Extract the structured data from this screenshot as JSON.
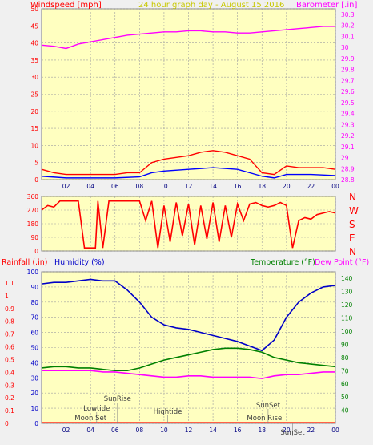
{
  "window": {
    "title": "24 hour graph day - August 15 2016"
  },
  "colors": {
    "background": "#f0f0f0",
    "plot_bg": "#ffffc0",
    "grid": "#a0a0a0",
    "wind": "#ff0000",
    "wind_avg": "#0000ff",
    "wind_green": "#008000",
    "barometer": "#ff00ff",
    "humidity": "#0000c8",
    "temperature": "#008000",
    "dewpoint": "#ff00ff",
    "rainfall": "#ff0000"
  },
  "chart_data": [
    {
      "type": "line",
      "title": "24 hour graph day - August 15 2016",
      "ylabel": "Windspeed [mph]",
      "y2label": "Barometer [.in]",
      "ylim": [
        0,
        50
      ],
      "y2lim": [
        28.8,
        30.35
      ],
      "x_ticks": [
        "02",
        "04",
        "06",
        "08",
        "10",
        "12",
        "14",
        "16",
        "18",
        "20",
        "22",
        "00"
      ],
      "y_ticks": [
        "0",
        "5",
        "10",
        "15",
        "20",
        "25",
        "30",
        "35",
        "40",
        "45",
        "50"
      ],
      "y2_ticks": [
        "28.8",
        "28.9",
        "29",
        "29.1",
        "29.2",
        "29.3",
        "29.4",
        "29.5",
        "29.6",
        "29.7",
        "29.8",
        "29.9",
        "30",
        "30.1",
        "30.2",
        "30.3"
      ],
      "series": [
        {
          "name": "Barometer",
          "axis": "right",
          "x": [
            0,
            1,
            2,
            3,
            4,
            5,
            6,
            7,
            8,
            9,
            10,
            11,
            12,
            13,
            14,
            15,
            16,
            17,
            18,
            19,
            20,
            21,
            22,
            23,
            24
          ],
          "values": [
            30.02,
            30.01,
            29.99,
            30.03,
            30.05,
            30.07,
            30.09,
            30.11,
            30.12,
            30.13,
            30.14,
            30.14,
            30.15,
            30.15,
            30.14,
            30.14,
            30.13,
            30.13,
            30.14,
            30.15,
            30.16,
            30.17,
            30.18,
            30.19,
            30.19
          ]
        },
        {
          "name": "Wind gust",
          "axis": "left",
          "x": [
            0,
            1,
            2,
            3,
            4,
            5,
            6,
            7,
            8,
            9,
            10,
            11,
            12,
            13,
            14,
            15,
            16,
            17,
            18,
            19,
            20,
            21,
            22,
            23,
            24
          ],
          "values": [
            3,
            2,
            1.5,
            1.5,
            1.5,
            1.5,
            1.5,
            2,
            2,
            5,
            6,
            6.5,
            7,
            8,
            8.5,
            8,
            7,
            6,
            2,
            1.5,
            4,
            3.5,
            3.5,
            3.5,
            3
          ]
        },
        {
          "name": "Wind average",
          "axis": "left",
          "x": [
            0,
            2,
            4,
            6,
            8,
            9,
            10,
            12,
            14,
            16,
            18,
            19,
            20,
            22,
            24
          ],
          "values": [
            1,
            0.5,
            0.5,
            0.5,
            0.8,
            2,
            2.5,
            3,
            3.5,
            3,
            1,
            0.5,
            1.5,
            1.5,
            1.2
          ]
        }
      ]
    },
    {
      "type": "line",
      "title": "",
      "ylabel": "",
      "ylim": [
        0,
        360
      ],
      "y_ticks": [
        "0",
        "90",
        "180",
        "270",
        "360"
      ],
      "direction_labels": [
        "N",
        "W",
        "S",
        "E",
        "N"
      ],
      "series": [
        {
          "name": "Wind direction",
          "x": [
            0,
            0.5,
            1,
            1.5,
            2,
            2.5,
            3,
            3.5,
            4,
            4.4,
            4.6,
            5,
            5.5,
            6,
            6.5,
            7,
            7.5,
            8,
            8.5,
            9,
            9.5,
            10,
            10.5,
            11,
            11.5,
            12,
            12.5,
            13,
            13.5,
            14,
            14.5,
            15,
            15.5,
            16,
            16.5,
            17,
            17.5,
            18,
            18.5,
            19,
            19.5,
            20,
            20.5,
            21,
            21.5,
            22,
            22.5,
            23,
            23.5,
            24
          ],
          "values": [
            270,
            300,
            290,
            330,
            330,
            330,
            330,
            20,
            20,
            20,
            330,
            20,
            330,
            330,
            330,
            330,
            330,
            330,
            200,
            330,
            20,
            300,
            60,
            320,
            100,
            310,
            40,
            300,
            80,
            320,
            60,
            300,
            90,
            310,
            200,
            310,
            320,
            300,
            290,
            300,
            320,
            300,
            20,
            200,
            220,
            210,
            240,
            250,
            260,
            250
          ]
        }
      ]
    },
    {
      "type": "line",
      "title": "",
      "ylabel": "Rainfall (.in)",
      "ylabel2": "Humidity (%)",
      "y2label": "Temperature (°F)",
      "y2label2": "Dew Point (°F)",
      "ylim": [
        0,
        100
      ],
      "y2lim": [
        30,
        145
      ],
      "x_ticks": [
        "02",
        "04",
        "06",
        "08",
        "10",
        "12",
        "14",
        "16",
        "18",
        "20",
        "22",
        "00"
      ],
      "y_ticks_humidity": [
        "0",
        "10",
        "20",
        "30",
        "40",
        "50",
        "60",
        "70",
        "80",
        "90",
        "100"
      ],
      "y_ticks_rain": [
        "0",
        "0.1",
        "0.2",
        "0.3",
        "0.4",
        "0.5",
        "0.6",
        "0.7",
        "0.8",
        "0.9",
        "1",
        "1.1"
      ],
      "y2_ticks": [
        "40",
        "50",
        "60",
        "70",
        "80",
        "90",
        "100",
        "110",
        "120",
        "130",
        "140"
      ],
      "annotations": [
        "SunRise",
        "Lowtide",
        "Moon Set",
        "Hightide",
        "SunSet",
        "Moon Rise",
        "SunSet"
      ],
      "series": [
        {
          "name": "Humidity",
          "axis": "left",
          "x": [
            0,
            1,
            2,
            3,
            4,
            5,
            6,
            7,
            8,
            9,
            10,
            11,
            12,
            13,
            14,
            15,
            16,
            17,
            18,
            19,
            20,
            21,
            22,
            23,
            24
          ],
          "values": [
            92,
            93,
            93,
            94,
            95,
            94,
            94,
            88,
            80,
            70,
            65,
            63,
            62,
            60,
            58,
            56,
            54,
            51,
            48,
            55,
            70,
            80,
            86,
            90,
            91
          ]
        },
        {
          "name": "Temperature",
          "axis": "right",
          "x": [
            0,
            1,
            2,
            3,
            4,
            5,
            6,
            7,
            8,
            9,
            10,
            11,
            12,
            13,
            14,
            15,
            16,
            17,
            18,
            19,
            20,
            21,
            22,
            23,
            24
          ],
          "values": [
            72,
            73,
            73,
            72,
            72,
            71,
            70,
            70,
            72,
            75,
            78,
            80,
            82,
            84,
            86,
            87,
            87,
            86,
            84,
            80,
            78,
            76,
            75,
            74,
            73
          ]
        },
        {
          "name": "Dew Point",
          "axis": "right",
          "x": [
            0,
            1,
            2,
            3,
            4,
            5,
            6,
            7,
            8,
            9,
            10,
            11,
            12,
            13,
            14,
            15,
            16,
            17,
            18,
            19,
            20,
            21,
            22,
            23,
            24
          ],
          "values": [
            70,
            70,
            70,
            70,
            70,
            69,
            69,
            68,
            67,
            66,
            65,
            65,
            66,
            66,
            65,
            65,
            65,
            65,
            64,
            66,
            67,
            67,
            68,
            69,
            69
          ]
        }
      ]
    }
  ]
}
